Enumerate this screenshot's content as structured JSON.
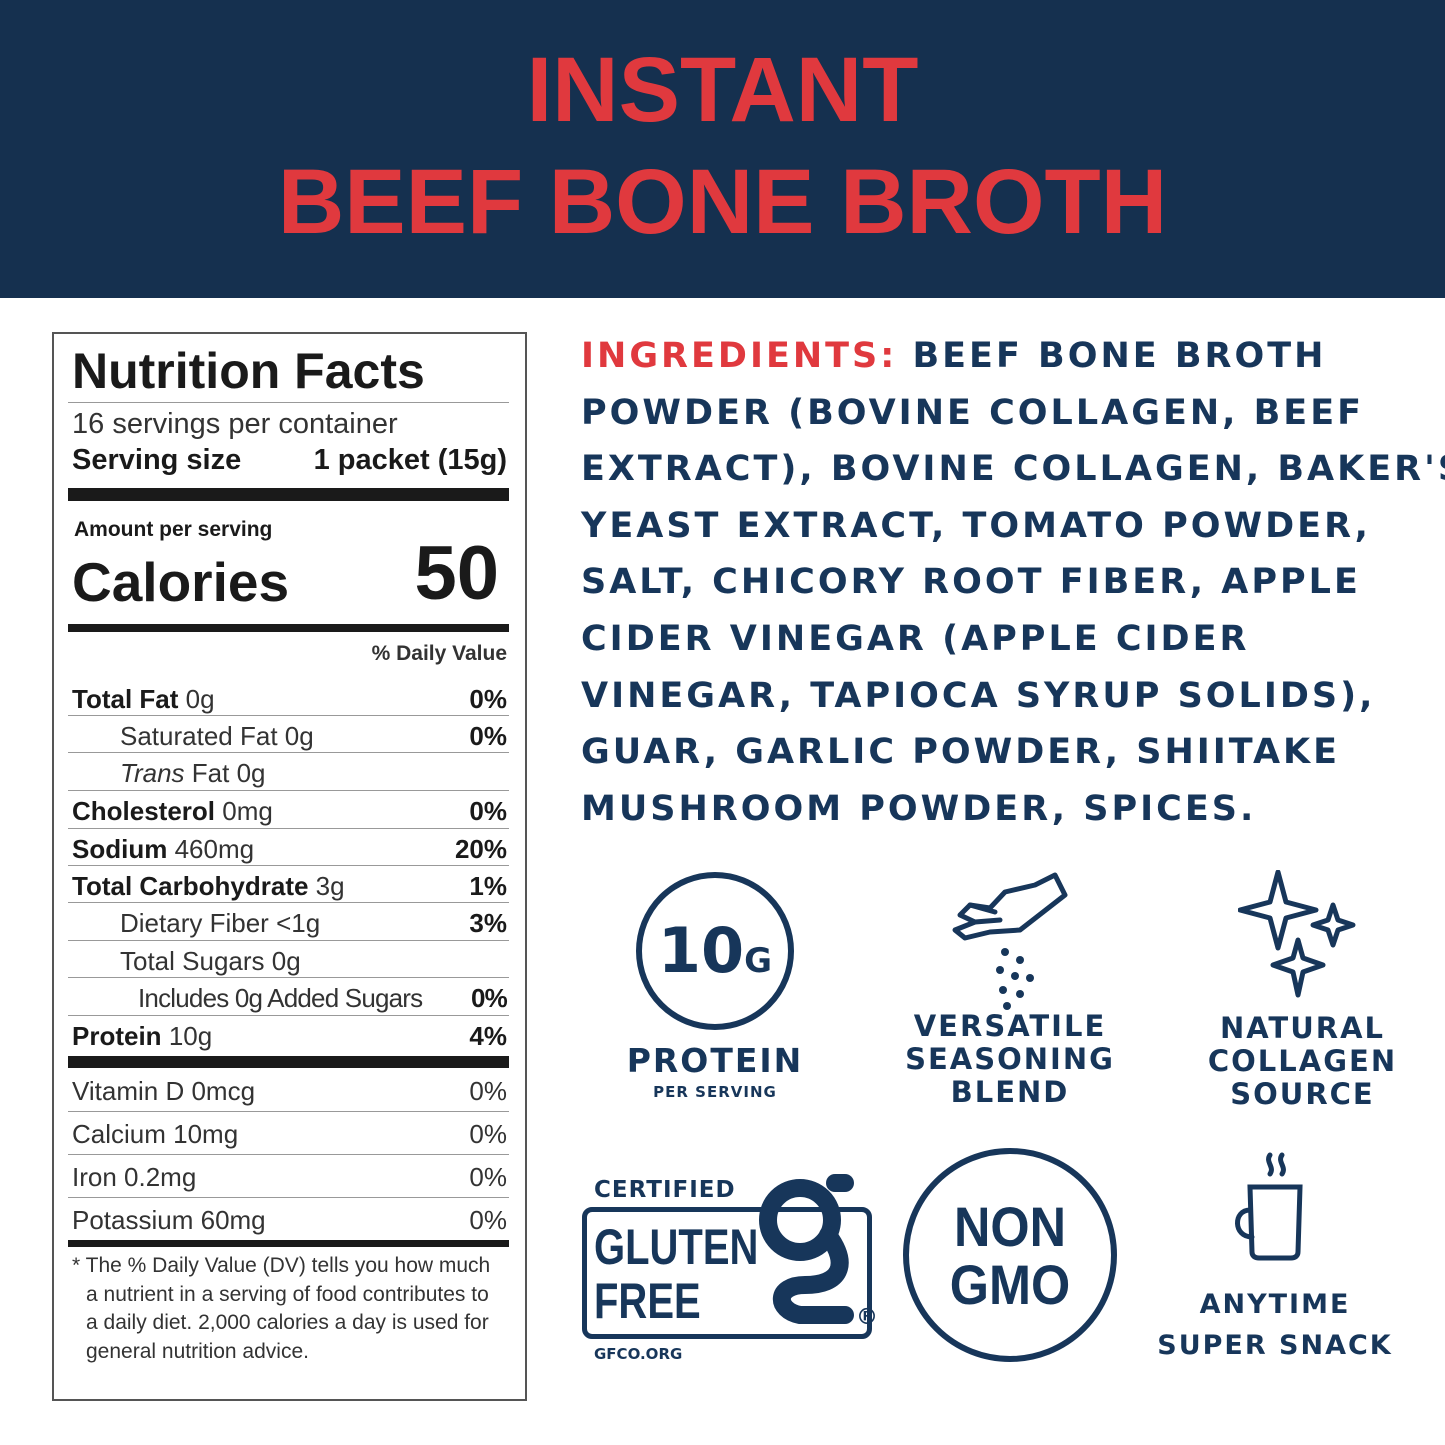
{
  "header": {
    "line1": "INSTANT",
    "line2": "BEEF BONE BROTH"
  },
  "colors": {
    "navy": "#15304f",
    "red": "#e0393e",
    "ink": "#17365a"
  },
  "nutrition": {
    "title": "Nutrition Facts",
    "servings": "16 servings per container",
    "serving_size_label": "Serving size",
    "serving_size_value": "1 packet (15g)",
    "amount_per_serving": "Amount per serving",
    "calories_label": "Calories",
    "calories_value": "50",
    "dv_header": "% Daily Value",
    "rows": [
      {
        "name": "Total Fat",
        "amount": "0g",
        "dv": "0%"
      },
      {
        "name": "Saturated Fat",
        "amount": "0g",
        "dv": "0%"
      },
      {
        "name": "Trans",
        "name2": "Fat",
        "amount": "0g",
        "dv": ""
      },
      {
        "name": "Cholesterol",
        "amount": "0mg",
        "dv": "0%"
      },
      {
        "name": "Sodium",
        "amount": "460mg",
        "dv": "20%"
      },
      {
        "name": "Total Carbohydrate",
        "amount": "3g",
        "dv": "1%"
      },
      {
        "name": "Dietary Fiber",
        "amount": "<1g",
        "dv": "3%"
      },
      {
        "name": "Total Sugars",
        "amount": "0g",
        "dv": ""
      },
      {
        "name": "Includes 0g Added Sugars",
        "amount": "",
        "dv": "0%"
      },
      {
        "name": "Protein",
        "amount": "10g",
        "dv": "4%"
      }
    ],
    "vitamins": [
      {
        "name": "Vitamin D 0mcg",
        "dv": "0%"
      },
      {
        "name": "Calcium 10mg",
        "dv": "0%"
      },
      {
        "name": "Iron 0.2mg",
        "dv": "0%"
      },
      {
        "name": "Potassium 60mg",
        "dv": "0%"
      }
    ],
    "footnote": "* The % Daily Value (DV) tells you how much a nutrient in a serving of food contributes to a daily diet. 2,000 calories a day is used for general nutrition advice."
  },
  "ingredients": {
    "label": "INGREDIENTS:",
    "lines": [
      " BEEF BONE BROTH",
      "POWDER (BOVINE COLLAGEN, BEEF",
      "EXTRACT), BOVINE COLLAGEN, BAKER'S",
      "YEAST EXTRACT, TOMATO POWDER,",
      "SALT, CHICORY ROOT FIBER, APPLE",
      "CIDER VINEGAR (APPLE CIDER",
      "VINEGAR, TAPIOCA SYRUP SOLIDS),",
      "GUAR, GARLIC POWDER, SHIITAKE",
      "MUSHROOM POWDER, SPICES."
    ]
  },
  "badges": {
    "protein": {
      "value": "10",
      "unit": "G",
      "label": "PROTEIN",
      "sub": "PER SERVING",
      "icon": "circle-badge-icon"
    },
    "seasoning": {
      "line1": "VERSATILE",
      "line2": "SEASONING",
      "line3": "BLEND",
      "icon": "hand-sprinkle-icon"
    },
    "collagen": {
      "line1": "NATURAL",
      "line2": "COLLAGEN",
      "line3": "SOURCE",
      "icon": "sparkles-icon"
    },
    "gluten": {
      "top": "CERTIFIED",
      "line1": "GLUTEN",
      "line2": "FREE",
      "site": "GFCO.ORG",
      "registered": "®",
      "icon": "gluten-free-logo"
    },
    "gmo": {
      "line1": "NON",
      "line2": "GMO",
      "icon": "circle-badge-icon"
    },
    "snack": {
      "line1": "ANYTIME",
      "line2": "SUPER SNACK",
      "icon": "steaming-mug-icon"
    }
  }
}
